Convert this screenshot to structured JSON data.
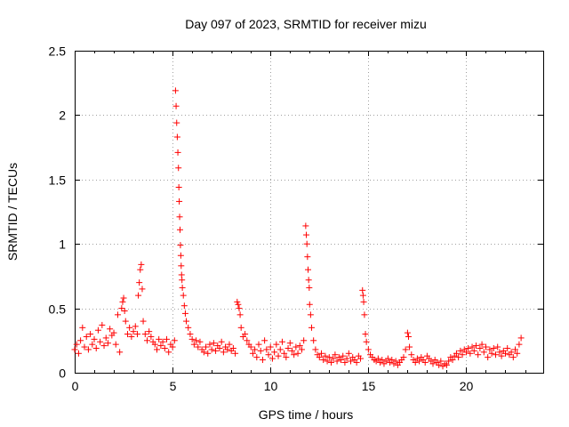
{
  "chart_data": {
    "type": "scatter",
    "title": "Day 097 of 2023, SRMTID for receiver mizu",
    "xlabel": "GPS time / hours",
    "ylabel": "SRMTID / TECUs",
    "xlim": [
      0,
      23.93
    ],
    "ylim": [
      0,
      2.5
    ],
    "xticks": [
      0,
      5,
      10,
      15,
      20
    ],
    "xtick_labels": [
      "0",
      "5",
      "10",
      "15",
      "20"
    ],
    "yticks": [
      0,
      0.5,
      1,
      1.5,
      2,
      2.5
    ],
    "ytick_labels": [
      "0",
      "0.5",
      "1",
      "1.5",
      "2",
      "2.5"
    ],
    "grid": true,
    "marker": "+",
    "color": "#ff0000",
    "series": [
      {
        "name": "SRMTID",
        "points": [
          [
            0.0,
            0.18
          ],
          [
            0.1,
            0.22
          ],
          [
            0.2,
            0.15
          ],
          [
            0.3,
            0.25
          ],
          [
            0.4,
            0.35
          ],
          [
            0.5,
            0.2
          ],
          [
            0.6,
            0.28
          ],
          [
            0.7,
            0.18
          ],
          [
            0.8,
            0.3
          ],
          [
            0.9,
            0.22
          ],
          [
            1.0,
            0.26
          ],
          [
            1.1,
            0.19
          ],
          [
            1.2,
            0.33
          ],
          [
            1.3,
            0.24
          ],
          [
            1.4,
            0.37
          ],
          [
            1.5,
            0.21
          ],
          [
            1.6,
            0.27
          ],
          [
            1.7,
            0.23
          ],
          [
            1.8,
            0.34
          ],
          [
            1.9,
            0.29
          ],
          [
            2.0,
            0.31
          ],
          [
            2.1,
            0.22
          ],
          [
            2.2,
            0.45
          ],
          [
            2.3,
            0.16
          ],
          [
            2.4,
            0.5
          ],
          [
            2.45,
            0.55
          ],
          [
            2.5,
            0.58
          ],
          [
            2.55,
            0.48
          ],
          [
            2.6,
            0.4
          ],
          [
            2.7,
            0.3
          ],
          [
            2.8,
            0.35
          ],
          [
            2.9,
            0.28
          ],
          [
            3.0,
            0.32
          ],
          [
            3.1,
            0.36
          ],
          [
            3.2,
            0.3
          ],
          [
            3.25,
            0.6
          ],
          [
            3.3,
            0.7
          ],
          [
            3.35,
            0.8
          ],
          [
            3.4,
            0.84
          ],
          [
            3.45,
            0.65
          ],
          [
            3.5,
            0.4
          ],
          [
            3.6,
            0.3
          ],
          [
            3.7,
            0.25
          ],
          [
            3.8,
            0.32
          ],
          [
            3.9,
            0.28
          ],
          [
            4.0,
            0.24
          ],
          [
            4.1,
            0.22
          ],
          [
            4.2,
            0.18
          ],
          [
            4.3,
            0.26
          ],
          [
            4.4,
            0.21
          ],
          [
            4.5,
            0.24
          ],
          [
            4.6,
            0.19
          ],
          [
            4.7,
            0.26
          ],
          [
            4.8,
            0.16
          ],
          [
            4.9,
            0.22
          ],
          [
            5.0,
            0.2
          ],
          [
            5.1,
            0.25
          ],
          [
            5.15,
            2.19
          ],
          [
            5.18,
            2.07
          ],
          [
            5.21,
            1.94
          ],
          [
            5.24,
            1.83
          ],
          [
            5.27,
            1.71
          ],
          [
            5.3,
            1.59
          ],
          [
            5.32,
            1.44
          ],
          [
            5.34,
            1.33
          ],
          [
            5.36,
            1.21
          ],
          [
            5.38,
            1.11
          ],
          [
            5.4,
            0.99
          ],
          [
            5.42,
            0.91
          ],
          [
            5.44,
            0.83
          ],
          [
            5.46,
            0.76
          ],
          [
            5.48,
            0.72
          ],
          [
            5.5,
            0.66
          ],
          [
            5.55,
            0.6
          ],
          [
            5.6,
            0.52
          ],
          [
            5.65,
            0.46
          ],
          [
            5.7,
            0.4
          ],
          [
            5.8,
            0.35
          ],
          [
            5.9,
            0.3
          ],
          [
            6.0,
            0.26
          ],
          [
            6.1,
            0.22
          ],
          [
            6.2,
            0.25
          ],
          [
            6.3,
            0.2
          ],
          [
            6.4,
            0.24
          ],
          [
            6.5,
            0.18
          ],
          [
            6.6,
            0.16
          ],
          [
            6.7,
            0.2
          ],
          [
            6.8,
            0.15
          ],
          [
            6.9,
            0.22
          ],
          [
            7.0,
            0.18
          ],
          [
            7.1,
            0.23
          ],
          [
            7.2,
            0.17
          ],
          [
            7.3,
            0.21
          ],
          [
            7.4,
            0.19
          ],
          [
            7.5,
            0.24
          ],
          [
            7.6,
            0.16
          ],
          [
            7.7,
            0.2
          ],
          [
            7.8,
            0.18
          ],
          [
            7.9,
            0.22
          ],
          [
            8.0,
            0.17
          ],
          [
            8.1,
            0.19
          ],
          [
            8.2,
            0.15
          ],
          [
            8.3,
            0.55
          ],
          [
            8.35,
            0.53
          ],
          [
            8.4,
            0.5
          ],
          [
            8.45,
            0.45
          ],
          [
            8.5,
            0.35
          ],
          [
            8.6,
            0.28
          ],
          [
            8.7,
            0.3
          ],
          [
            8.8,
            0.25
          ],
          [
            8.9,
            0.22
          ],
          [
            9.0,
            0.2
          ],
          [
            9.1,
            0.15
          ],
          [
            9.2,
            0.18
          ],
          [
            9.3,
            0.12
          ],
          [
            9.4,
            0.22
          ],
          [
            9.5,
            0.17
          ],
          [
            9.6,
            0.1
          ],
          [
            9.7,
            0.25
          ],
          [
            9.8,
            0.18
          ],
          [
            9.9,
            0.14
          ],
          [
            10.0,
            0.2
          ],
          [
            10.1,
            0.11
          ],
          [
            10.2,
            0.16
          ],
          [
            10.3,
            0.22
          ],
          [
            10.4,
            0.13
          ],
          [
            10.5,
            0.18
          ],
          [
            10.6,
            0.24
          ],
          [
            10.7,
            0.15
          ],
          [
            10.8,
            0.12
          ],
          [
            10.9,
            0.19
          ],
          [
            11.0,
            0.23
          ],
          [
            11.1,
            0.17
          ],
          [
            11.2,
            0.14
          ],
          [
            11.3,
            0.2
          ],
          [
            11.4,
            0.15
          ],
          [
            11.5,
            0.21
          ],
          [
            11.6,
            0.18
          ],
          [
            11.7,
            0.25
          ],
          [
            11.8,
            1.14
          ],
          [
            11.83,
            1.07
          ],
          [
            11.86,
            1.0
          ],
          [
            11.89,
            0.9
          ],
          [
            11.92,
            0.8
          ],
          [
            11.95,
            0.72
          ],
          [
            11.98,
            0.66
          ],
          [
            12.0,
            0.53
          ],
          [
            12.05,
            0.45
          ],
          [
            12.1,
            0.35
          ],
          [
            12.2,
            0.25
          ],
          [
            12.3,
            0.18
          ],
          [
            12.4,
            0.14
          ],
          [
            12.5,
            0.12
          ],
          [
            12.6,
            0.15
          ],
          [
            12.7,
            0.1
          ],
          [
            12.8,
            0.13
          ],
          [
            12.9,
            0.09
          ],
          [
            13.0,
            0.12
          ],
          [
            13.1,
            0.08
          ],
          [
            13.2,
            0.11
          ],
          [
            13.3,
            0.14
          ],
          [
            13.4,
            0.09
          ],
          [
            13.5,
            0.12
          ],
          [
            13.6,
            0.1
          ],
          [
            13.7,
            0.13
          ],
          [
            13.8,
            0.08
          ],
          [
            13.9,
            0.11
          ],
          [
            14.0,
            0.15
          ],
          [
            14.1,
            0.09
          ],
          [
            14.2,
            0.12
          ],
          [
            14.3,
            0.1
          ],
          [
            14.4,
            0.08
          ],
          [
            14.5,
            0.13
          ],
          [
            14.6,
            0.11
          ],
          [
            14.7,
            0.64
          ],
          [
            14.73,
            0.6
          ],
          [
            14.76,
            0.55
          ],
          [
            14.8,
            0.45
          ],
          [
            14.85,
            0.3
          ],
          [
            14.9,
            0.24
          ],
          [
            15.0,
            0.18
          ],
          [
            15.1,
            0.14
          ],
          [
            15.2,
            0.12
          ],
          [
            15.3,
            0.1
          ],
          [
            15.4,
            0.09
          ],
          [
            15.5,
            0.11
          ],
          [
            15.6,
            0.08
          ],
          [
            15.7,
            0.1
          ],
          [
            15.8,
            0.07
          ],
          [
            15.9,
            0.09
          ],
          [
            16.0,
            0.11
          ],
          [
            16.1,
            0.08
          ],
          [
            16.2,
            0.1
          ],
          [
            16.3,
            0.07
          ],
          [
            16.4,
            0.09
          ],
          [
            16.5,
            0.06
          ],
          [
            16.6,
            0.08
          ],
          [
            16.7,
            0.1
          ],
          [
            16.8,
            0.12
          ],
          [
            16.9,
            0.18
          ],
          [
            17.0,
            0.31
          ],
          [
            17.05,
            0.28
          ],
          [
            17.1,
            0.2
          ],
          [
            17.2,
            0.14
          ],
          [
            17.3,
            0.1
          ],
          [
            17.4,
            0.08
          ],
          [
            17.5,
            0.11
          ],
          [
            17.6,
            0.09
          ],
          [
            17.7,
            0.12
          ],
          [
            17.8,
            0.1
          ],
          [
            17.9,
            0.08
          ],
          [
            18.0,
            0.13
          ],
          [
            18.1,
            0.11
          ],
          [
            18.2,
            0.09
          ],
          [
            18.3,
            0.07
          ],
          [
            18.4,
            0.1
          ],
          [
            18.5,
            0.08
          ],
          [
            18.6,
            0.06
          ],
          [
            18.7,
            0.09
          ],
          [
            18.8,
            0.05
          ],
          [
            18.9,
            0.07
          ],
          [
            19.0,
            0.06
          ],
          [
            19.1,
            0.09
          ],
          [
            19.2,
            0.12
          ],
          [
            19.3,
            0.1
          ],
          [
            19.4,
            0.13
          ],
          [
            19.5,
            0.15
          ],
          [
            19.6,
            0.12
          ],
          [
            19.7,
            0.17
          ],
          [
            19.8,
            0.14
          ],
          [
            19.9,
            0.18
          ],
          [
            20.0,
            0.16
          ],
          [
            20.1,
            0.19
          ],
          [
            20.2,
            0.15
          ],
          [
            20.3,
            0.2
          ],
          [
            20.4,
            0.17
          ],
          [
            20.5,
            0.21
          ],
          [
            20.6,
            0.14
          ],
          [
            20.7,
            0.19
          ],
          [
            20.8,
            0.22
          ],
          [
            20.9,
            0.16
          ],
          [
            21.0,
            0.2
          ],
          [
            21.1,
            0.12
          ],
          [
            21.2,
            0.18
          ],
          [
            21.3,
            0.15
          ],
          [
            21.4,
            0.19
          ],
          [
            21.5,
            0.14
          ],
          [
            21.6,
            0.2
          ],
          [
            21.7,
            0.16
          ],
          [
            21.8,
            0.13
          ],
          [
            21.9,
            0.17
          ],
          [
            22.0,
            0.15
          ],
          [
            22.1,
            0.19
          ],
          [
            22.2,
            0.14
          ],
          [
            22.3,
            0.16
          ],
          [
            22.4,
            0.12
          ],
          [
            22.5,
            0.18
          ],
          [
            22.6,
            0.15
          ],
          [
            22.7,
            0.22
          ],
          [
            22.8,
            0.27
          ]
        ]
      }
    ]
  }
}
